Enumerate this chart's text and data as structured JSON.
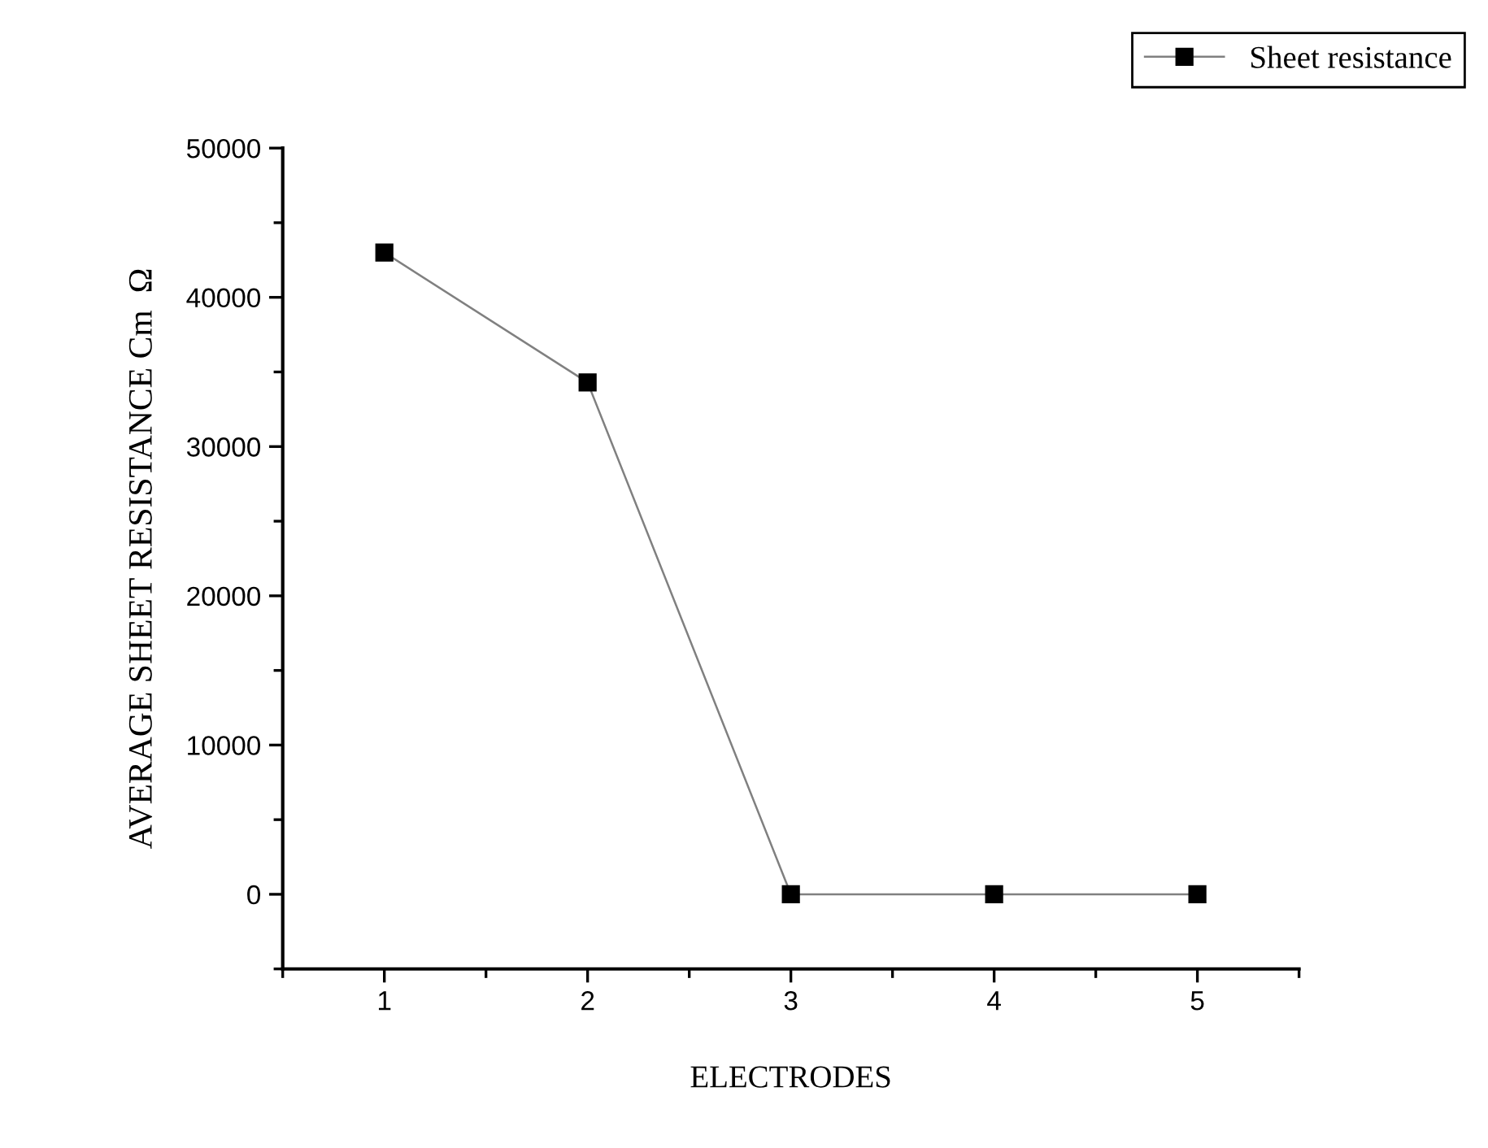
{
  "chart_data": {
    "type": "line",
    "xlabel": "ELECTRODES",
    "ylabel": "AVERAGE SHEET RESISTANCE Cm  Ω",
    "x": [
      1,
      2,
      3,
      4,
      5
    ],
    "series": [
      {
        "name": "Sheet resistance",
        "color": "#808080",
        "values": [
          43000,
          34300,
          0,
          0,
          0
        ]
      }
    ],
    "xlim": [
      0.5,
      5.5
    ],
    "xticks": [
      1,
      2,
      3,
      4,
      5
    ],
    "ylim": [
      -5000,
      50000
    ],
    "yticks": [
      0,
      10000,
      20000,
      30000,
      40000,
      50000
    ],
    "marker": "square",
    "line_style": "solid",
    "legend": "top right",
    "grid": false
  }
}
